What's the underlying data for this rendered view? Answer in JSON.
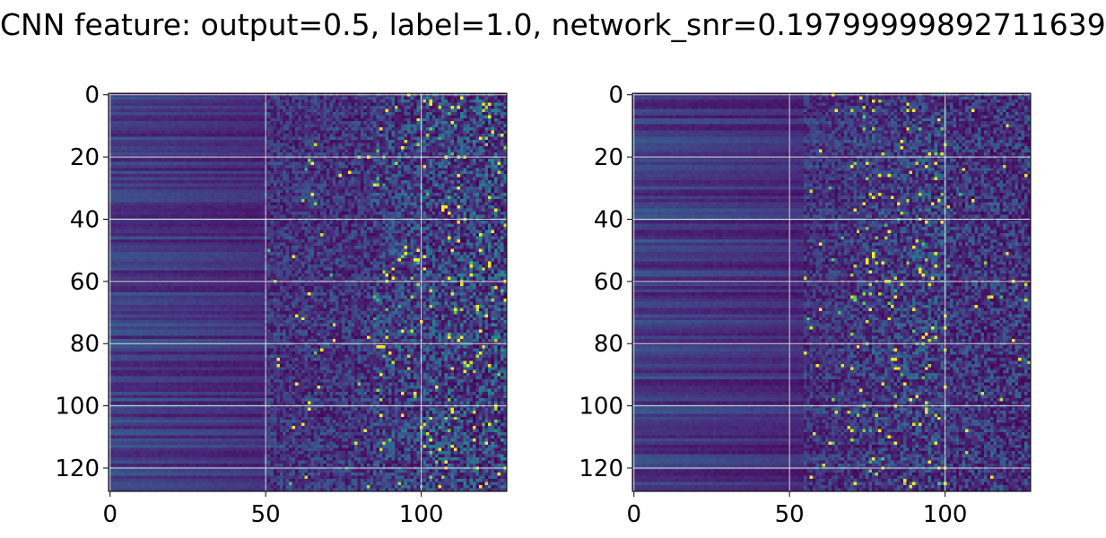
{
  "figure_title": "CNN feature: output=0.5, label=1.0, network_snr=0.19799999892711639",
  "colormap": {
    "name": "viridis",
    "stops": [
      "#440154",
      "#482878",
      "#3e4a89",
      "#31688e",
      "#26828e",
      "#1f9e89",
      "#35b779",
      "#6ece58",
      "#b5de2b",
      "#fde725"
    ]
  },
  "grid_color": "#d9d9d9",
  "chart_data": [
    {
      "type": "heatmap",
      "title": "",
      "xlabel": "",
      "ylabel": "",
      "shape": [
        128,
        128
      ],
      "xlim": [
        -0.5,
        127.5
      ],
      "ylim": [
        127.5,
        -0.5
      ],
      "x_ticks": [
        0,
        50,
        100
      ],
      "y_ticks": [
        0,
        20,
        40,
        60,
        80,
        100,
        120
      ],
      "grid": true,
      "noise_onset_column": 50,
      "dense_band_columns": [
        85,
        127
      ],
      "seed": 17
    },
    {
      "type": "heatmap",
      "title": "",
      "xlabel": "",
      "ylabel": "",
      "shape": [
        128,
        128
      ],
      "xlim": [
        -0.5,
        127.5
      ],
      "ylim": [
        127.5,
        -0.5
      ],
      "x_ticks": [
        0,
        50,
        100
      ],
      "y_ticks": [
        0,
        20,
        40,
        60,
        80,
        100,
        120
      ],
      "grid": true,
      "noise_onset_column": 55,
      "dense_band_columns": [
        70,
        100
      ],
      "seed": 91
    }
  ]
}
